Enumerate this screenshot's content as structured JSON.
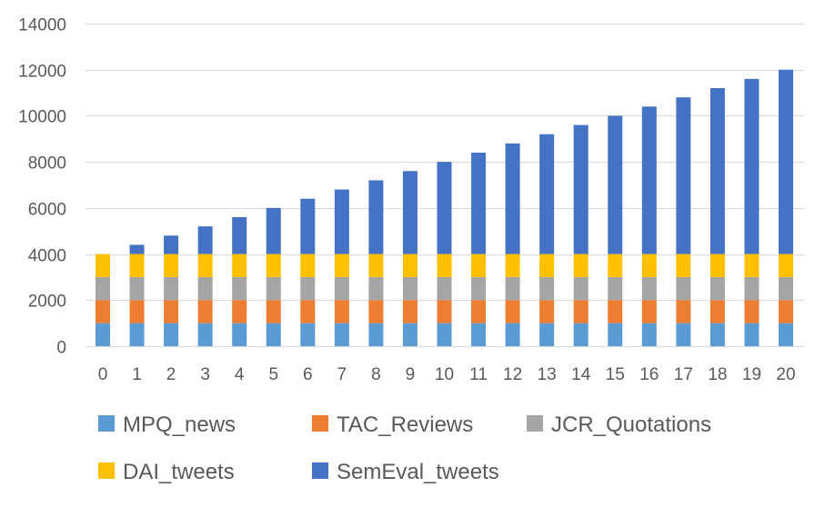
{
  "chart_data": {
    "type": "bar",
    "stacked": true,
    "title": "",
    "xlabel": "",
    "ylabel": "",
    "ylim": [
      0,
      14000
    ],
    "yticks": [
      0,
      2000,
      4000,
      6000,
      8000,
      10000,
      12000,
      14000
    ],
    "grid": "horizontal",
    "legend_position": "bottom",
    "categories": [
      "0",
      "1",
      "2",
      "3",
      "4",
      "5",
      "6",
      "7",
      "8",
      "9",
      "10",
      "11",
      "12",
      "13",
      "14",
      "15",
      "16",
      "17",
      "18",
      "19",
      "20"
    ],
    "series": [
      {
        "name": "MPQ_news",
        "color": "#5B9BD5",
        "values": [
          1000,
          1000,
          1000,
          1000,
          1000,
          1000,
          1000,
          1000,
          1000,
          1000,
          1000,
          1000,
          1000,
          1000,
          1000,
          1000,
          1000,
          1000,
          1000,
          1000,
          1000
        ]
      },
      {
        "name": "TAC_Reviews",
        "color": "#ED7D31",
        "values": [
          1000,
          1000,
          1000,
          1000,
          1000,
          1000,
          1000,
          1000,
          1000,
          1000,
          1000,
          1000,
          1000,
          1000,
          1000,
          1000,
          1000,
          1000,
          1000,
          1000,
          1000
        ]
      },
      {
        "name": "JCR_Quotations",
        "color": "#A5A5A5",
        "values": [
          1000,
          1000,
          1000,
          1000,
          1000,
          1000,
          1000,
          1000,
          1000,
          1000,
          1000,
          1000,
          1000,
          1000,
          1000,
          1000,
          1000,
          1000,
          1000,
          1000,
          1000
        ]
      },
      {
        "name": "DAI_tweets",
        "color": "#FFC000",
        "values": [
          1000,
          1000,
          1000,
          1000,
          1000,
          1000,
          1000,
          1000,
          1000,
          1000,
          1000,
          1000,
          1000,
          1000,
          1000,
          1000,
          1000,
          1000,
          1000,
          1000,
          1000
        ]
      },
      {
        "name": "SemEval_tweets",
        "color": "#4472C4",
        "values": [
          0,
          400,
          800,
          1200,
          1600,
          2000,
          2400,
          2800,
          3200,
          3600,
          4000,
          4400,
          4800,
          5200,
          5600,
          6000,
          6400,
          6800,
          7200,
          7600,
          8000
        ]
      }
    ]
  }
}
